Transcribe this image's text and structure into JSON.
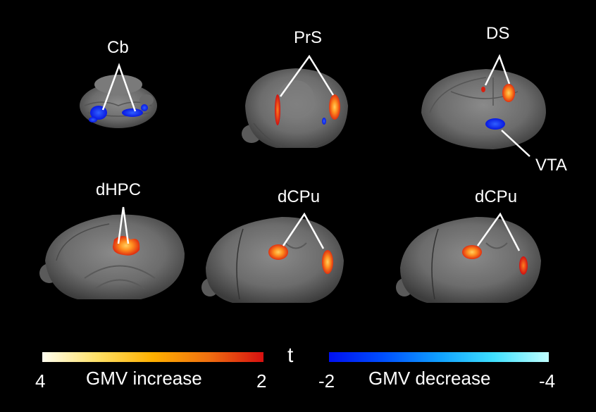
{
  "figure": {
    "labels": {
      "cb": "Cb",
      "prs": "PrS",
      "ds": "DS",
      "vta": "VTA",
      "dhpc": "dHPC",
      "dcpu1": "dCPu",
      "dcpu2": "dCPu"
    }
  },
  "legend": {
    "stat_symbol": "t",
    "increase": {
      "caption": "GMV increase",
      "left_tick": "4",
      "right_tick": "2",
      "colors": [
        "#fffef0",
        "#ffe066",
        "#ffb000",
        "#f07010",
        "#d81010"
      ]
    },
    "decrease": {
      "caption": "GMV decrease",
      "left_tick": "-2",
      "right_tick": "-4",
      "colors": [
        "#0010f0",
        "#0050ff",
        "#10a0ff",
        "#40e0ff",
        "#c0ffff"
      ]
    }
  },
  "colors": {
    "background": "#000000",
    "brain": "#6e6e6e",
    "increase_hot": "#ff7a10",
    "decrease_blue": "#1030ff"
  }
}
